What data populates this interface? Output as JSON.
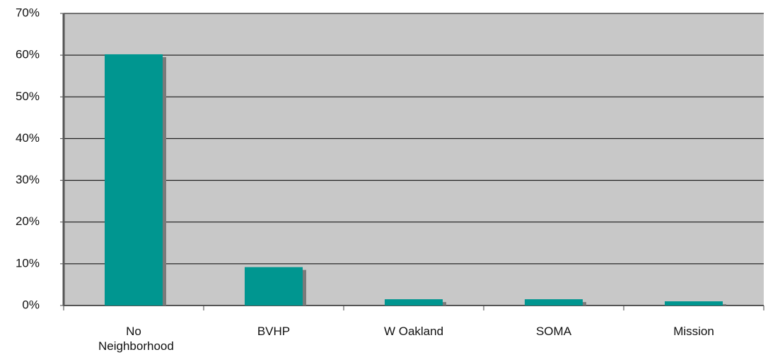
{
  "chart_data": {
    "type": "bar",
    "categories": [
      "No Neighborhood",
      "BVHP",
      "W Oakland",
      "SOMA",
      "Mission"
    ],
    "values": [
      60.2,
      9.2,
      1.5,
      1.5,
      1.0
    ],
    "color": "#009690",
    "ylim": [
      0,
      70
    ],
    "yticks": [
      {
        "value": 0,
        "label": "0%"
      },
      {
        "value": 10,
        "label": "10%"
      },
      {
        "value": 20,
        "label": "20%"
      },
      {
        "value": 30,
        "label": "30%"
      },
      {
        "value": 40,
        "label": "40%"
      },
      {
        "value": 50,
        "label": "50%"
      },
      {
        "value": 60,
        "label": "60%"
      },
      {
        "value": 70,
        "label": "70%"
      }
    ],
    "grid": true
  }
}
